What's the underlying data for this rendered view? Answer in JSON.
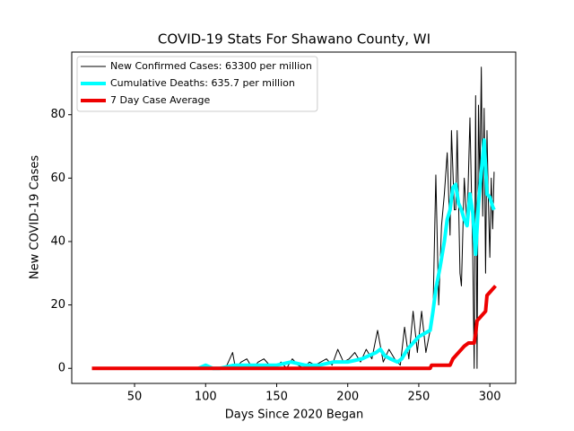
{
  "chart_data": {
    "type": "line",
    "title": "COVID-19 Stats For Shawano County, WI",
    "xlabel": "Days Since 2020 Began",
    "ylabel": "New COVID-19 Cases",
    "xlim": [
      5.8,
      318.2
    ],
    "ylim": [
      -4.75,
      99.75
    ],
    "xticks": [
      50,
      100,
      150,
      200,
      250,
      300
    ],
    "yticks": [
      0,
      20,
      40,
      60,
      80
    ],
    "grid": false,
    "legend": "upper left",
    "series": [
      {
        "name": "New Confirmed Cases: 63300 per million",
        "color": "#000000",
        "width": 1,
        "x": [
          95,
          100,
          105,
          110,
          115,
          119,
          121,
          125,
          129,
          133,
          137,
          141,
          145,
          149,
          153,
          157,
          161,
          165,
          169,
          173,
          177,
          181,
          185,
          189,
          193,
          197,
          201,
          205,
          209,
          213,
          217,
          221,
          225,
          229,
          233,
          237,
          240,
          243,
          246,
          249,
          252,
          255,
          258,
          260,
          262,
          264,
          266,
          268,
          270,
          272,
          273,
          275,
          276,
          277,
          279,
          280,
          282,
          284,
          286,
          288,
          289,
          290,
          291,
          292,
          293,
          294,
          295,
          296,
          297,
          298,
          299,
          300,
          301,
          302,
          303
        ],
        "values": [
          0,
          1,
          0,
          0,
          1,
          5,
          0,
          2,
          3,
          0,
          2,
          3,
          1,
          0,
          2,
          0,
          3,
          1,
          0,
          2,
          1,
          2,
          3,
          1,
          6,
          2,
          3,
          5,
          2,
          6,
          3,
          12,
          2,
          6,
          3,
          1,
          13,
          3,
          18,
          5,
          18,
          5,
          12,
          17,
          61,
          20,
          45,
          55,
          68,
          42,
          75,
          50,
          50,
          75,
          30,
          26,
          60,
          45,
          79,
          35,
          0,
          86,
          0,
          83,
          58,
          95,
          48,
          82,
          30,
          75,
          52,
          35,
          60,
          44,
          62
        ]
      },
      {
        "name": "Cumulative Deaths: 635.7 per million",
        "color": "#00ffff",
        "width": 4,
        "x": [
          95,
          100,
          105,
          110,
          120,
          130,
          140,
          150,
          160,
          170,
          180,
          190,
          200,
          210,
          215,
          220,
          223,
          226,
          230,
          235,
          238,
          242,
          246,
          250,
          254,
          258,
          260,
          262,
          265,
          268,
          270,
          272,
          274,
          276,
          278,
          280,
          282,
          284,
          286,
          288,
          290,
          292,
          294,
          296,
          298,
          300,
          302,
          303
        ],
        "values": [
          0,
          1,
          0,
          0,
          1,
          1,
          1,
          1,
          2,
          1,
          1,
          2,
          2,
          3,
          4,
          5,
          6,
          4,
          3,
          2,
          3,
          6,
          8,
          10,
          11,
          12,
          18,
          25,
          32,
          40,
          47,
          50,
          57,
          58,
          52,
          50,
          47,
          45,
          55,
          49,
          36,
          52,
          62,
          72,
          55,
          54,
          51,
          50
        ]
      },
      {
        "name": "7 Day Case Average",
        "color": "#ee0000",
        "width": 4,
        "x": [
          20,
          258,
          259,
          272,
          274,
          276,
          278,
          280,
          282,
          285,
          289,
          290,
          291,
          293,
          295,
          297,
          298,
          300,
          302,
          304
        ],
        "values": [
          0,
          0,
          1,
          1,
          3,
          4,
          5,
          6,
          7,
          8,
          8,
          11,
          15,
          16,
          17,
          18,
          23,
          24,
          25,
          26
        ]
      }
    ]
  }
}
